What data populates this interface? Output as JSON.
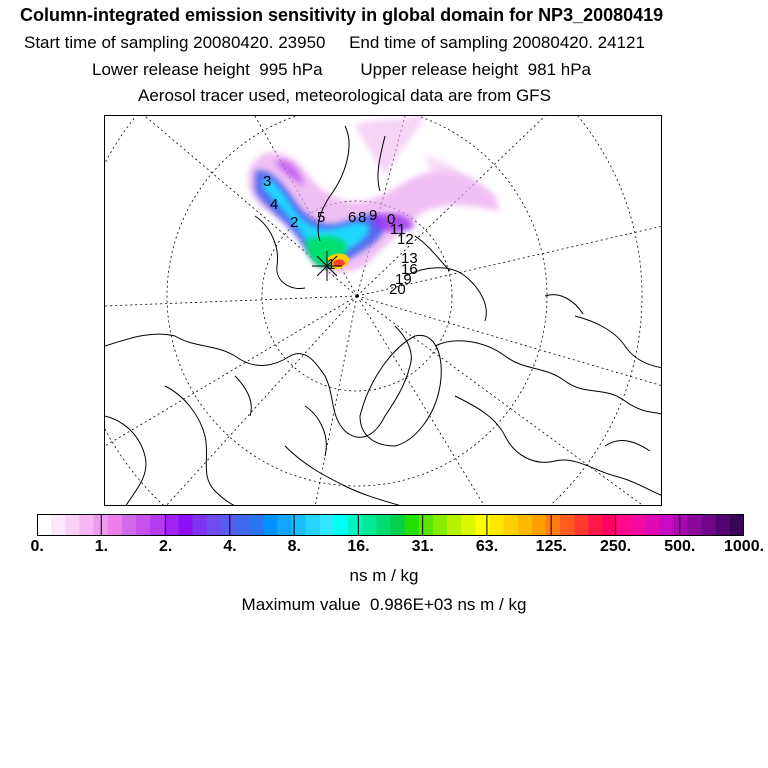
{
  "header": {
    "title": "Column-integrated emission sensitivity in global domain for NP3_20080419",
    "sampling_line": "Start time of sampling 20080420. 23950     End time of sampling 20080420. 24121",
    "release_line": "Lower release height  995 hPa        Upper release height  981 hPa",
    "tracer_line": "Aerosol tracer used, meteorological data are from GFS"
  },
  "map": {
    "projection": "north-polar-stereographic",
    "trajectory_markers": [
      "1",
      "2",
      "3",
      "4",
      "5",
      "6",
      "8",
      "9",
      "0",
      "11",
      "12",
      "13",
      "16",
      "19",
      "20"
    ]
  },
  "colorbar": {
    "colors": [
      "#ffffff",
      "#fde8fb",
      "#f9d0f6",
      "#f5b6f2",
      "#f09cee",
      "#ea7fe9",
      "#d06ae8",
      "#c552ec",
      "#b63af0",
      "#a321f4",
      "#8c10f3",
      "#7e33f2",
      "#6e4cf2",
      "#5a5cf1",
      "#4068ef",
      "#2a74f0",
      "#0090ff",
      "#14a6ff",
      "#1ebdff",
      "#27d3ff",
      "#2ee8ff",
      "#00fff0",
      "#00f5c0",
      "#00ea98",
      "#00dd70",
      "#00d148",
      "#22e000",
      "#56e600",
      "#86ec00",
      "#b4f200",
      "#dcf800",
      "#ffff00",
      "#ffe800",
      "#ffd000",
      "#ffb800",
      "#ff9e00",
      "#ff7c10",
      "#ff5a20",
      "#ff3830",
      "#ff1848",
      "#ff0064",
      "#ff0a88",
      "#f40aa0",
      "#e00ab4",
      "#c80ac0",
      "#a808b0",
      "#8c089c",
      "#700688",
      "#520470",
      "#3c0458"
    ],
    "tick_labels": [
      "0.",
      "1.",
      "2.",
      "4.",
      "8.",
      "16.",
      "31.",
      "63.",
      "125.",
      "250.",
      "500.",
      "1000."
    ],
    "unit": "ns m / kg",
    "max_value_line": "Maximum value  0.986E+03 ns m / kg"
  }
}
